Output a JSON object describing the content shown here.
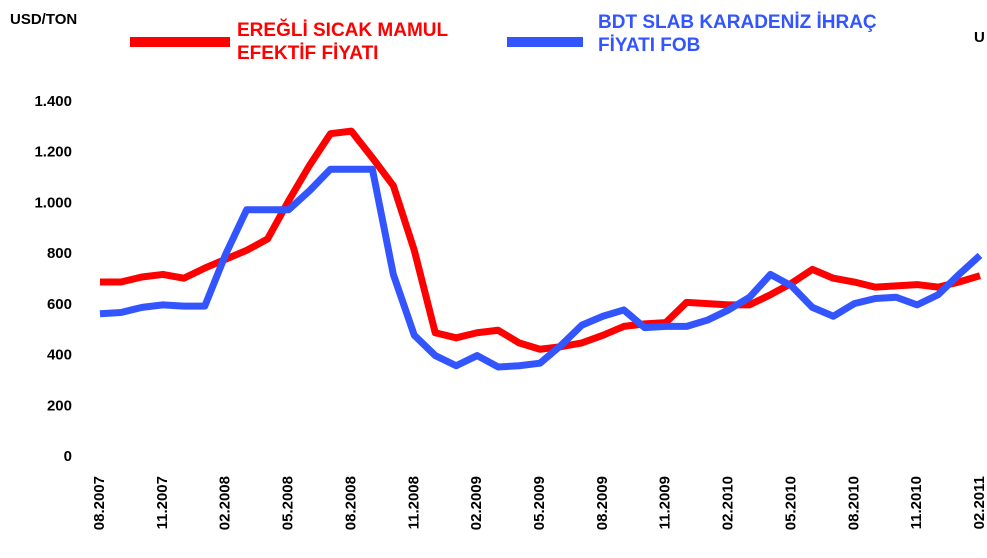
{
  "chart_data": {
    "type": "line",
    "y_label": "USD/TON",
    "y2_label": "U",
    "categories": [
      "08.2007",
      null,
      null,
      "11.2007",
      null,
      null,
      "02.2008",
      null,
      null,
      "05.2008",
      null,
      null,
      "08.2008",
      null,
      null,
      "11.2008",
      null,
      null,
      "02.2009",
      null,
      null,
      "05.2009",
      null,
      null,
      "08.2009",
      null,
      null,
      "11.2009",
      null,
      null,
      "02.2010",
      null,
      null,
      "05.2010",
      null,
      null,
      "08.2010",
      null,
      null,
      "11.2010",
      null,
      null,
      "02.2011"
    ],
    "series": [
      {
        "name": "EREĞLİ SICAK MAMUL EFEKTİF FİYATI",
        "color": "#ff0000",
        "values": [
          690,
          690,
          710,
          720,
          705,
          745,
          780,
          815,
          860,
          1010,
          1150,
          1275,
          1285,
          1180,
          1070,
          815,
          490,
          470,
          490,
          500,
          450,
          425,
          435,
          450,
          480,
          515,
          525,
          530,
          610,
          605,
          600,
          600,
          640,
          685,
          740,
          705,
          690,
          670,
          675,
          680,
          670,
          690,
          715
        ]
      },
      {
        "name": "BDT SLAB KARADENİZ İHRAÇ FİYATI FOB",
        "color": "#3355ff",
        "values": [
          565,
          570,
          590,
          600,
          595,
          595,
          800,
          975,
          975,
          975,
          1050,
          1135,
          1135,
          1135,
          720,
          480,
          400,
          360,
          400,
          355,
          360,
          370,
          440,
          520,
          555,
          580,
          510,
          515,
          515,
          540,
          580,
          630,
          720,
          675,
          590,
          555,
          605,
          625,
          630,
          600,
          640,
          720,
          795
        ]
      }
    ],
    "ylim": [
      0,
      1400
    ],
    "yticks": [
      0,
      200,
      400,
      600,
      800,
      {
        "value": 1000,
        "label": "1.000"
      },
      {
        "value": 1200,
        "label": "1.200"
      },
      {
        "value": 1400,
        "label": "1.400"
      }
    ],
    "grid": false
  }
}
